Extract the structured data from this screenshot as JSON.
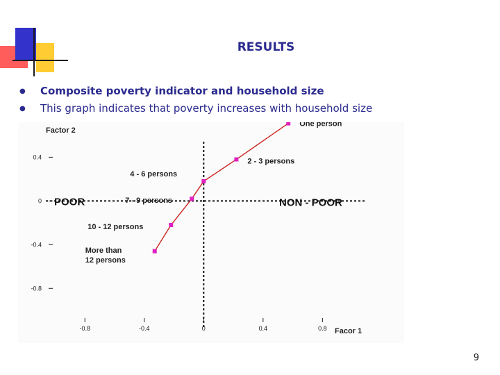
{
  "slide": {
    "title": "RESULTS",
    "bullets": [
      "Composite poverty indicator and household size",
      "This graph indicates that poverty increases with household size"
    ],
    "page_number": "9"
  },
  "chart_data": {
    "type": "line",
    "xlabel": "Facor 1",
    "ylabel": "Factor 2",
    "x_ticks": [
      -0.8,
      -0.4,
      0,
      0.4,
      0.8
    ],
    "x_tick_labels": [
      "-0.8",
      "-0.4",
      "0",
      "0.4",
      "0.8"
    ],
    "y_ticks": [
      0.4,
      0,
      -0.4,
      -0.8
    ],
    "y_tick_labels": [
      "0.4",
      "0",
      "-0.4",
      "-0.8"
    ],
    "xlim": [
      -1.25,
      1.35
    ],
    "ylim": [
      -1.3,
      0.72
    ],
    "line_color": "#cc2222",
    "marker_color": "#e020c0",
    "region_labels": {
      "left": "POOR",
      "right": "NON - POOR"
    },
    "points": [
      {
        "label": "One person",
        "x": 0.57,
        "y": 0.71
      },
      {
        "label": "2 - 3 persons",
        "x": 0.22,
        "y": 0.38
      },
      {
        "label": "4 - 6 persons",
        "x": 0.0,
        "y": 0.18
      },
      {
        "label": "7 - 9 persons",
        "x": -0.08,
        "y": 0.02
      },
      {
        "label": "10 - 12 persons",
        "x": -0.22,
        "y": -0.22
      },
      {
        "label": "More than 12 persons",
        "x": -0.33,
        "y": -0.46
      }
    ]
  }
}
